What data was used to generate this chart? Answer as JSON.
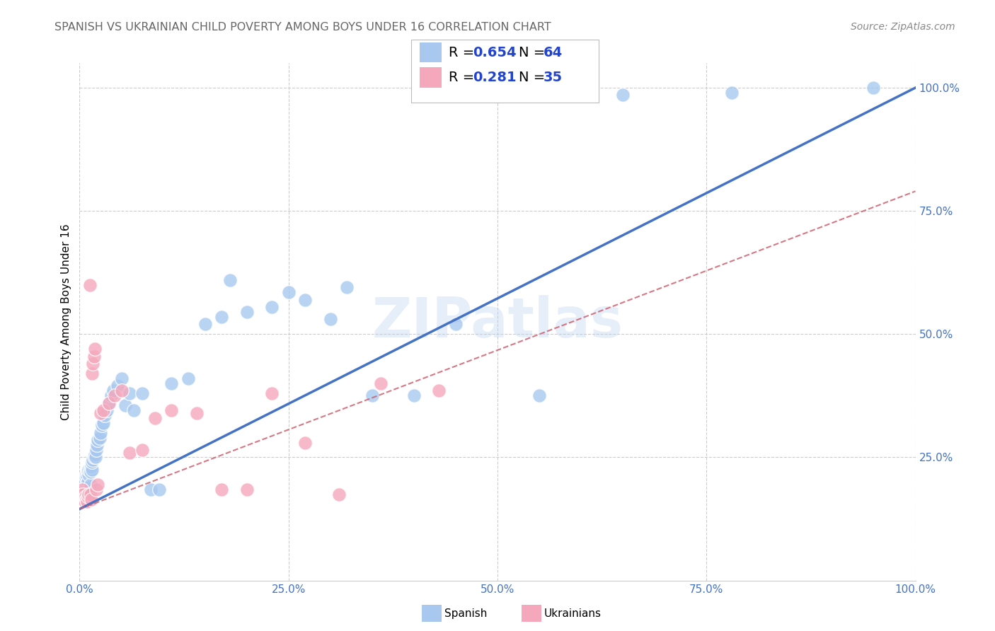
{
  "title": "SPANISH VS UKRAINIAN CHILD POVERTY AMONG BOYS UNDER 16 CORRELATION CHART",
  "source": "Source: ZipAtlas.com",
  "ylabel": "Child Poverty Among Boys Under 16",
  "watermark": "ZIPatlas",
  "spanish_R": 0.654,
  "spanish_N": 64,
  "ukrainian_R": 0.281,
  "ukrainian_N": 35,
  "spanish_color": "#a8c8f0",
  "ukrainian_color": "#f5a8bc",
  "trend_spanish_color": "#4472c4",
  "trend_ukrainian_color": "#d06070",
  "axis_label_color": "#4472c4",
  "legend_R_color": "#2244cc",
  "background_color": "#ffffff",
  "grid_color": "#cccccc",
  "title_color": "#666666",
  "source_color": "#888888",
  "spanish_x": [
    0.003,
    0.005,
    0.005,
    0.006,
    0.007,
    0.007,
    0.008,
    0.008,
    0.009,
    0.009,
    0.01,
    0.01,
    0.011,
    0.011,
    0.012,
    0.012,
    0.013,
    0.013,
    0.014,
    0.014,
    0.015,
    0.015,
    0.016,
    0.017,
    0.018,
    0.019,
    0.02,
    0.021,
    0.022,
    0.024,
    0.025,
    0.027,
    0.028,
    0.03,
    0.033,
    0.035,
    0.038,
    0.04,
    0.045,
    0.05,
    0.055,
    0.06,
    0.065,
    0.075,
    0.085,
    0.095,
    0.11,
    0.13,
    0.15,
    0.17,
    0.2,
    0.23,
    0.27,
    0.32,
    0.18,
    0.25,
    0.3,
    0.35,
    0.4,
    0.45,
    0.55,
    0.65,
    0.78,
    0.95
  ],
  "spanish_y": [
    0.195,
    0.185,
    0.19,
    0.2,
    0.19,
    0.21,
    0.18,
    0.215,
    0.195,
    0.21,
    0.2,
    0.22,
    0.215,
    0.225,
    0.19,
    0.225,
    0.195,
    0.22,
    0.235,
    0.23,
    0.225,
    0.24,
    0.245,
    0.25,
    0.255,
    0.25,
    0.265,
    0.275,
    0.285,
    0.29,
    0.3,
    0.315,
    0.32,
    0.335,
    0.345,
    0.36,
    0.375,
    0.385,
    0.395,
    0.41,
    0.355,
    0.38,
    0.345,
    0.38,
    0.185,
    0.185,
    0.4,
    0.41,
    0.52,
    0.535,
    0.545,
    0.555,
    0.57,
    0.595,
    0.61,
    0.585,
    0.53,
    0.375,
    0.375,
    0.52,
    0.375,
    0.985,
    0.99,
    1.0
  ],
  "ukrainian_x": [
    0.003,
    0.004,
    0.005,
    0.006,
    0.007,
    0.008,
    0.009,
    0.01,
    0.011,
    0.012,
    0.013,
    0.014,
    0.015,
    0.016,
    0.017,
    0.018,
    0.02,
    0.022,
    0.025,
    0.028,
    0.035,
    0.042,
    0.05,
    0.06,
    0.075,
    0.09,
    0.11,
    0.14,
    0.17,
    0.2,
    0.23,
    0.27,
    0.31,
    0.36,
    0.43
  ],
  "ukrainian_y": [
    0.185,
    0.175,
    0.165,
    0.16,
    0.17,
    0.165,
    0.16,
    0.17,
    0.175,
    0.6,
    0.175,
    0.165,
    0.42,
    0.44,
    0.455,
    0.47,
    0.185,
    0.195,
    0.34,
    0.345,
    0.36,
    0.375,
    0.385,
    0.26,
    0.265,
    0.33,
    0.345,
    0.34,
    0.185,
    0.185,
    0.38,
    0.28,
    0.175,
    0.4,
    0.385
  ],
  "trend_spanish_x0": 0.0,
  "trend_spanish_y0": 0.145,
  "trend_spanish_x1": 1.0,
  "trend_spanish_y1": 1.0,
  "trend_ukrainian_x0": 0.0,
  "trend_ukrainian_y0": 0.145,
  "trend_ukrainian_x1": 1.0,
  "trend_ukrainian_y1": 0.79,
  "xlim": [
    0.0,
    1.0
  ],
  "ylim": [
    0.0,
    1.05
  ],
  "xticks": [
    0.0,
    0.25,
    0.5,
    0.75,
    1.0
  ],
  "xtick_labels": [
    "0.0%",
    "25.0%",
    "50.0%",
    "75.0%",
    "100.0%"
  ],
  "yticks": [
    0.25,
    0.5,
    0.75,
    1.0
  ],
  "ytick_labels": [
    "25.0%",
    "50.0%",
    "75.0%",
    "100.0%"
  ]
}
